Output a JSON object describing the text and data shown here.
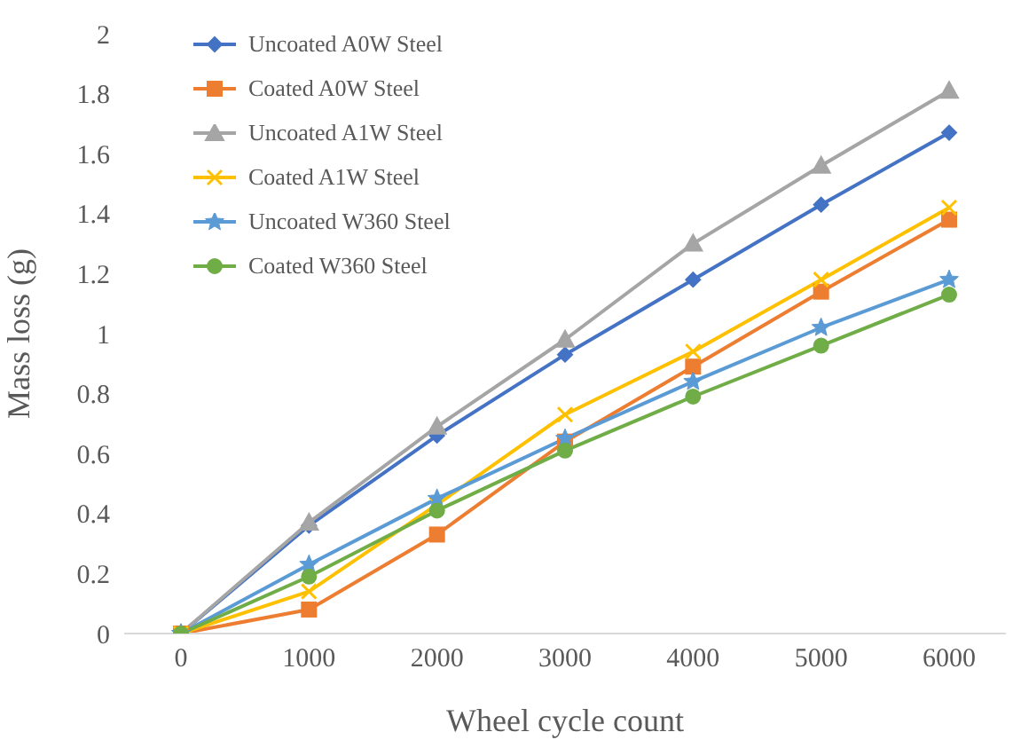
{
  "chart_data": {
    "type": "line",
    "xlabel": "Wheel cycle count",
    "ylabel": "Mass loss (g)",
    "categories": [
      "0",
      "1000",
      "2000",
      "3000",
      "4000",
      "5000",
      "6000"
    ],
    "ylim": [
      0,
      2
    ],
    "yticks": [
      0,
      0.2,
      0.4,
      0.6,
      0.8,
      1,
      1.2,
      1.4,
      1.6,
      1.8,
      2
    ],
    "grid": false,
    "legend": "top left",
    "line_style": "solid",
    "series": [
      {
        "name": "Uncoated A0W Steel",
        "color": "#4472c4",
        "marker": "diamond",
        "values": [
          0,
          0.36,
          0.66,
          0.93,
          1.18,
          1.43,
          1.67
        ]
      },
      {
        "name": "Coated A0W Steel",
        "color": "#ed7d31",
        "marker": "square",
        "values": [
          0,
          0.08,
          0.33,
          0.64,
          0.89,
          1.14,
          1.38
        ]
      },
      {
        "name": "Uncoated A1W Steel",
        "color": "#a5a5a5",
        "marker": "triangle",
        "values": [
          0,
          0.37,
          0.69,
          0.98,
          1.3,
          1.56,
          1.81
        ]
      },
      {
        "name": "Coated A1W Steel",
        "color": "#ffc000",
        "marker": "cross",
        "values": [
          0,
          0.14,
          0.43,
          0.73,
          0.94,
          1.18,
          1.42
        ]
      },
      {
        "name": "Uncoated W360 Steel",
        "color": "#5b9bd5",
        "marker": "star",
        "values": [
          0,
          0.23,
          0.45,
          0.65,
          0.84,
          1.02,
          1.18
        ]
      },
      {
        "name": "Coated W360 Steel",
        "color": "#70ad47",
        "marker": "circle",
        "values": [
          0,
          0.19,
          0.41,
          0.61,
          0.79,
          0.96,
          1.13
        ]
      }
    ]
  }
}
